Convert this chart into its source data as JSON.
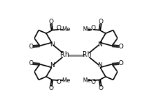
{
  "background_color": "#ffffff",
  "bond_color": "#000000",
  "rh_bond_color": "#888888",
  "line_width": 1.2,
  "figsize": [
    2.23,
    1.59
  ],
  "dpi": 100,
  "rh1": [
    0.385,
    0.5
  ],
  "rh2": [
    0.595,
    0.5
  ]
}
